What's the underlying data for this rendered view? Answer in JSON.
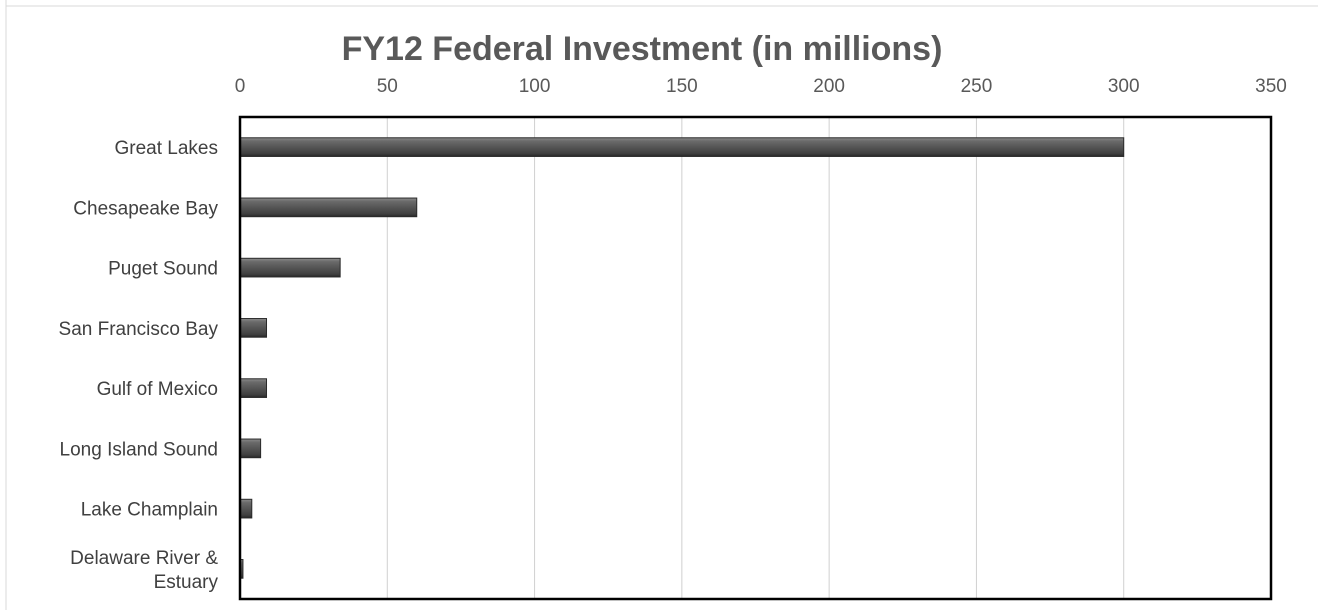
{
  "chart_data": {
    "type": "bar",
    "orientation": "horizontal",
    "title": "FY12 Federal Investment (in millions)",
    "xlabel": "",
    "ylabel": "",
    "categories": [
      "Great Lakes",
      "Chesapeake Bay",
      "Puget Sound",
      "San Francisco Bay",
      "Gulf of Mexico",
      "Long Island Sound",
      "Lake Champlain",
      [
        "Delaware River &",
        "Estuary"
      ]
    ],
    "values": [
      300,
      60,
      34,
      9,
      9,
      7,
      4,
      1
    ],
    "xlim": [
      0,
      350
    ],
    "xticks": [
      0,
      50,
      100,
      150,
      200,
      250,
      300,
      350
    ],
    "x_axis_position": "top",
    "grid": true,
    "legend": "none",
    "colors": {
      "bar_fill": "#595959",
      "bar_highlight": "#8c8c8c",
      "bar_shadow": "#262626",
      "gridline": "#d0d0d0",
      "plot_border": "#000000",
      "tick_text": "#595959",
      "title_text": "#595959"
    }
  }
}
